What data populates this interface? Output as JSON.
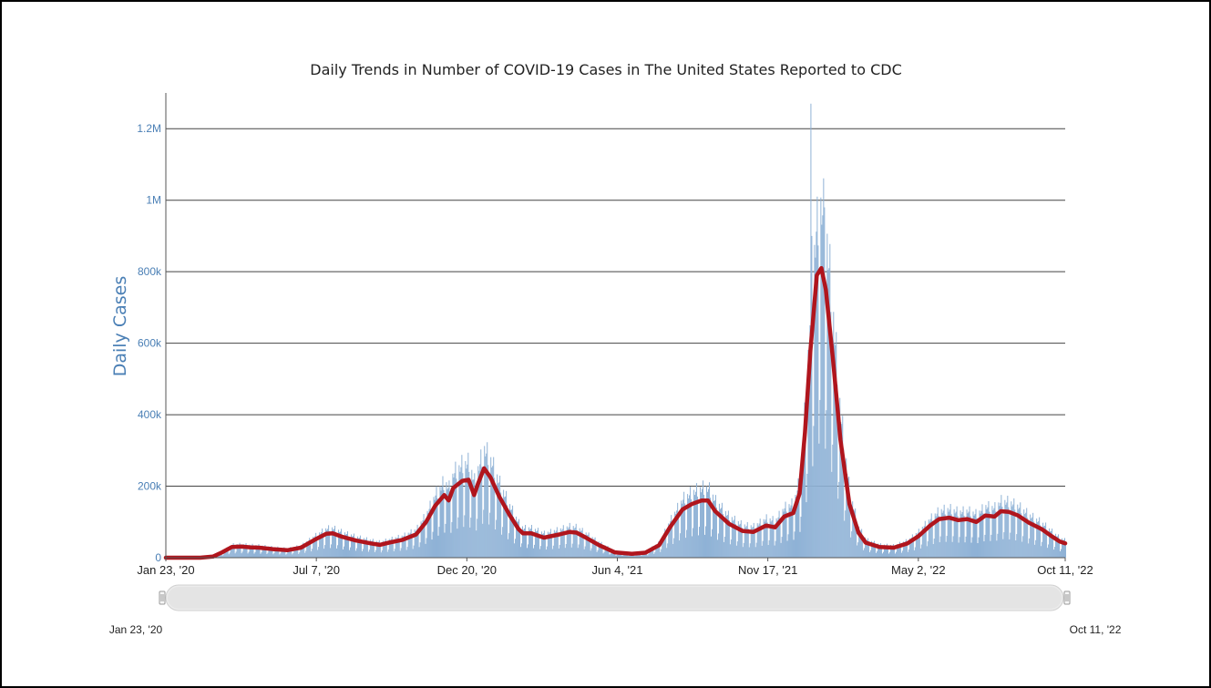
{
  "chart_data": {
    "type": "bar",
    "title": "Daily Trends in Number of COVID-19 Cases in The United States Reported to CDC",
    "ylabel": "Daily Cases",
    "xlabel": "",
    "x_range": [
      "2020-01-23",
      "2022-10-11"
    ],
    "ylim": [
      0,
      1300000
    ],
    "y_ticks": [
      0,
      200000,
      400000,
      600000,
      800000,
      1000000,
      1200000
    ],
    "y_tick_labels": [
      "0",
      "200k",
      "400k",
      "600k",
      "800k",
      "1M",
      "1.2M"
    ],
    "x_tick_labels": [
      "Jan 23, '20",
      "Jul 7, '20",
      "Dec 20, '20",
      "Jun 4, '21",
      "Nov 17, '21",
      "May 2, '22",
      "Oct 11, '22"
    ],
    "x_tick_dates": [
      "2020-01-23",
      "2020-07-07",
      "2020-12-20",
      "2021-06-04",
      "2021-11-17",
      "2022-05-02",
      "2022-10-11"
    ],
    "grid": true,
    "series": [
      {
        "name": "",
        "type": "line",
        "color": "#b0151d",
        "points": [
          [
            "2020-01-23",
            0
          ],
          [
            "2020-03-01",
            100
          ],
          [
            "2020-03-15",
            3000
          ],
          [
            "2020-03-25",
            15000
          ],
          [
            "2020-04-05",
            30000
          ],
          [
            "2020-04-15",
            31000
          ],
          [
            "2020-04-25",
            29000
          ],
          [
            "2020-05-05",
            28000
          ],
          [
            "2020-05-20",
            24000
          ],
          [
            "2020-06-05",
            21000
          ],
          [
            "2020-06-20",
            28000
          ],
          [
            "2020-07-05",
            50000
          ],
          [
            "2020-07-18",
            67000
          ],
          [
            "2020-07-25",
            68000
          ],
          [
            "2020-08-05",
            58000
          ],
          [
            "2020-08-20",
            48000
          ],
          [
            "2020-09-05",
            40000
          ],
          [
            "2020-09-15",
            36000
          ],
          [
            "2020-09-25",
            42000
          ],
          [
            "2020-10-10",
            50000
          ],
          [
            "2020-10-25",
            65000
          ],
          [
            "2020-11-05",
            100000
          ],
          [
            "2020-11-15",
            145000
          ],
          [
            "2020-11-25",
            175000
          ],
          [
            "2020-11-30",
            160000
          ],
          [
            "2020-12-05",
            195000
          ],
          [
            "2020-12-15",
            215000
          ],
          [
            "2020-12-22",
            218000
          ],
          [
            "2020-12-28",
            175000
          ],
          [
            "2021-01-01",
            205000
          ],
          [
            "2021-01-08",
            250000
          ],
          [
            "2021-01-15",
            225000
          ],
          [
            "2021-01-25",
            170000
          ],
          [
            "2021-02-05",
            120000
          ],
          [
            "2021-02-15",
            80000
          ],
          [
            "2021-02-20",
            68000
          ],
          [
            "2021-03-01",
            68000
          ],
          [
            "2021-03-15",
            56000
          ],
          [
            "2021-04-01",
            65000
          ],
          [
            "2021-04-12",
            72000
          ],
          [
            "2021-04-20",
            70000
          ],
          [
            "2021-05-01",
            55000
          ],
          [
            "2021-05-15",
            35000
          ],
          [
            "2021-06-01",
            15000
          ],
          [
            "2021-06-20",
            11000
          ],
          [
            "2021-07-05",
            14000
          ],
          [
            "2021-07-20",
            35000
          ],
          [
            "2021-08-01",
            85000
          ],
          [
            "2021-08-15",
            135000
          ],
          [
            "2021-08-25",
            150000
          ],
          [
            "2021-09-05",
            160000
          ],
          [
            "2021-09-12",
            160000
          ],
          [
            "2021-09-20",
            130000
          ],
          [
            "2021-10-05",
            95000
          ],
          [
            "2021-10-20",
            75000
          ],
          [
            "2021-11-01",
            72000
          ],
          [
            "2021-11-15",
            90000
          ],
          [
            "2021-11-25",
            85000
          ],
          [
            "2021-12-05",
            115000
          ],
          [
            "2021-12-15",
            125000
          ],
          [
            "2021-12-22",
            180000
          ],
          [
            "2021-12-28",
            350000
          ],
          [
            "2022-01-03",
            580000
          ],
          [
            "2022-01-10",
            790000
          ],
          [
            "2022-01-15",
            810000
          ],
          [
            "2022-01-20",
            750000
          ],
          [
            "2022-01-28",
            550000
          ],
          [
            "2022-02-05",
            330000
          ],
          [
            "2022-02-15",
            150000
          ],
          [
            "2022-02-25",
            70000
          ],
          [
            "2022-03-05",
            42000
          ],
          [
            "2022-03-20",
            30000
          ],
          [
            "2022-04-05",
            28000
          ],
          [
            "2022-04-20",
            40000
          ],
          [
            "2022-05-02",
            60000
          ],
          [
            "2022-05-15",
            90000
          ],
          [
            "2022-05-25",
            108000
          ],
          [
            "2022-06-05",
            112000
          ],
          [
            "2022-06-15",
            105000
          ],
          [
            "2022-06-25",
            108000
          ],
          [
            "2022-07-05",
            100000
          ],
          [
            "2022-07-15",
            118000
          ],
          [
            "2022-07-25",
            115000
          ],
          [
            "2022-08-01",
            130000
          ],
          [
            "2022-08-10",
            128000
          ],
          [
            "2022-08-20",
            118000
          ],
          [
            "2022-09-01",
            98000
          ],
          [
            "2022-09-15",
            80000
          ],
          [
            "2022-09-25",
            62000
          ],
          [
            "2022-10-05",
            45000
          ],
          [
            "2022-10-11",
            40000
          ]
        ]
      }
    ],
    "bars_color": "#8fb2d6",
    "navigator": {
      "start_label": "Jan 23, '20",
      "end_label": "Oct 11, '22"
    }
  }
}
